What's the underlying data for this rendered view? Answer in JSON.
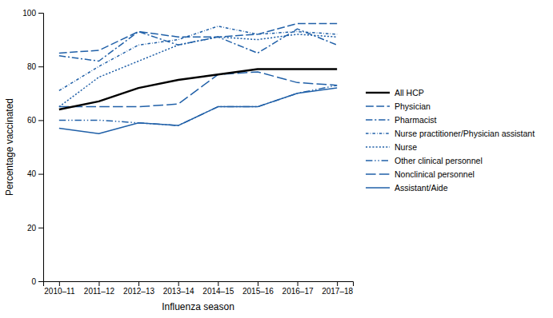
{
  "chart_data": {
    "type": "line",
    "xlabel": "Influenza season",
    "ylabel": "Percentage vaccinated",
    "categories": [
      "2010–11",
      "2011–12",
      "2012–13",
      "2013–14",
      "2014–15",
      "2015–16",
      "2016–17",
      "2017–18"
    ],
    "series": [
      {
        "name": "All HCP",
        "color": "#000000",
        "line_style": "solid",
        "values": [
          64,
          67,
          72,
          75,
          77,
          79,
          79,
          79
        ]
      },
      {
        "name": "Physician",
        "color": "#2060a8",
        "line_style": "dashed",
        "values": [
          85,
          86,
          93,
          91,
          91,
          92,
          96,
          96
        ]
      },
      {
        "name": "Pharmacist",
        "color": "#2060a8",
        "line_style": "dashdot",
        "values": [
          84,
          82,
          93,
          88,
          91,
          85,
          94,
          88
        ]
      },
      {
        "name": "Nurse practitioner/Physician assistant",
        "color": "#2060a8",
        "line_style": "shortdashdot",
        "values": [
          71,
          80,
          88,
          90,
          95,
          92,
          93,
          92
        ]
      },
      {
        "name": "Nurse",
        "color": "#2060a8",
        "line_style": "dotted",
        "values": [
          65,
          76,
          82,
          88,
          91,
          90,
          92,
          91
        ]
      },
      {
        "name": "Other clinical personnel",
        "color": "#2060a8",
        "line_style": "dashdotdot",
        "values": [
          60,
          60,
          59,
          58,
          65,
          65,
          70,
          73
        ]
      },
      {
        "name": "Nonclinical personnel",
        "color": "#2060a8",
        "line_style": "longdash",
        "values": [
          65,
          65,
          65,
          66,
          77,
          78,
          74,
          73
        ]
      },
      {
        "name": "Assistant/Aide",
        "color": "#2060a8",
        "line_style": "solid",
        "values": [
          57,
          55,
          59,
          58,
          65,
          65,
          70,
          72
        ]
      }
    ],
    "ylim": [
      0,
      100
    ],
    "yticks": [
      0,
      20,
      40,
      60,
      80,
      100
    ],
    "grid": false,
    "legend": "right"
  }
}
